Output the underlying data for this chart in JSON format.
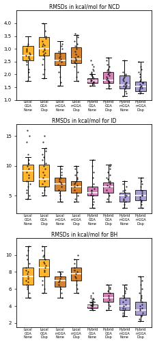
{
  "title_ncd": "RMSDs in kcal/mol for NCD",
  "title_id": "RMSDs in kcal/mol for ID",
  "title_bh": "RMSDs in kcal/mol for BH",
  "labels": [
    "Local\nGGA\nNone",
    "Local\nGGA\nDisp",
    "Local\nmGGA\nNone",
    "Local\nmGGA\nDisp",
    "Hybrid\nGGA\nNone",
    "Hybrid\nGGA\nDisp",
    "Hybrid\nmGGA\nNone",
    "Hybrid\nmGGA\nDisp"
  ],
  "colors": [
    "#FFA500",
    "#FFA500",
    "#CC6600",
    "#CC6600",
    "#CC66AA",
    "#CC66AA",
    "#9988CC",
    "#9988CC"
  ],
  "ncd": {
    "whislo": [
      1.75,
      1.85,
      1.55,
      1.75,
      1.55,
      1.45,
      1.15,
      1.25
    ],
    "q1": [
      2.55,
      2.75,
      2.35,
      2.45,
      1.65,
      1.65,
      1.45,
      1.35
    ],
    "med": [
      2.75,
      3.0,
      2.55,
      2.6,
      1.75,
      1.78,
      1.58,
      1.52
    ],
    "q3": [
      3.1,
      3.45,
      2.85,
      3.05,
      1.85,
      2.1,
      1.95,
      1.72
    ],
    "whishi": [
      3.5,
      4.0,
      3.3,
      3.55,
      2.0,
      2.65,
      2.55,
      2.5
    ],
    "dots": [
      [
        1.75,
        1.9,
        2.1,
        2.2,
        2.4,
        2.5,
        2.55,
        2.6,
        2.65,
        2.7,
        2.75,
        2.8,
        2.85,
        2.9,
        2.95,
        3.0,
        3.1,
        3.2
      ],
      [
        1.85,
        2.0,
        2.2,
        2.4,
        2.6,
        2.75,
        2.8,
        2.85,
        2.9,
        2.95,
        3.0,
        3.1,
        3.15,
        3.2,
        3.3,
        3.4,
        3.5,
        3.7,
        4.0
      ],
      [
        1.55,
        1.7,
        1.9,
        2.1,
        2.3,
        2.4,
        2.5,
        2.55,
        2.6,
        2.65,
        2.7,
        2.8,
        2.9,
        3.0,
        3.1,
        3.2
      ],
      [
        1.75,
        1.9,
        2.1,
        2.3,
        2.45,
        2.5,
        2.55,
        2.6,
        2.65,
        2.7,
        2.8,
        2.9,
        3.0,
        3.1,
        3.2,
        3.3,
        3.45,
        3.55,
        3.6
      ],
      [
        1.55,
        1.6,
        1.65,
        1.7,
        1.72,
        1.75,
        1.78,
        1.8,
        1.85,
        1.9,
        1.95,
        2.0,
        2.05,
        2.1,
        2.15,
        2.2,
        2.3,
        2.4,
        2.55
      ],
      [
        1.45,
        1.55,
        1.65,
        1.7,
        1.72,
        1.75,
        1.78,
        1.8,
        1.85,
        1.9,
        1.95,
        2.0,
        2.05,
        2.1,
        2.15,
        2.2,
        2.3,
        2.4,
        2.55,
        2.65
      ],
      [
        1.15,
        1.25,
        1.35,
        1.45,
        1.5,
        1.52,
        1.55,
        1.58,
        1.6,
        1.65,
        1.7,
        1.75,
        1.8,
        1.85,
        1.9,
        1.95,
        2.0,
        2.1,
        2.55
      ],
      [
        1.25,
        1.35,
        1.4,
        1.45,
        1.48,
        1.5,
        1.52,
        1.55,
        1.6,
        1.65,
        1.7,
        1.75,
        1.8,
        1.9,
        2.0,
        2.1,
        2.2,
        2.3,
        2.5
      ]
    ],
    "ylim": [
      1.0,
      4.5
    ],
    "yticks": [
      1.0,
      1.5,
      2.0,
      2.5,
      3.0,
      3.5,
      4.0
    ]
  },
  "id": {
    "whislo": [
      4.5,
      5.0,
      4.0,
      4.0,
      3.0,
      4.0,
      3.0,
      3.0
    ],
    "q1": [
      7.5,
      6.5,
      5.8,
      5.5,
      5.0,
      5.5,
      4.0,
      4.2
    ],
    "med": [
      9.2,
      7.8,
      7.0,
      6.5,
      5.5,
      6.5,
      5.0,
      5.0
    ],
    "q3": [
      10.2,
      10.2,
      8.0,
      7.5,
      6.5,
      7.2,
      5.5,
      6.0
    ],
    "whishi": [
      11.5,
      13.0,
      10.0,
      10.0,
      11.0,
      10.2,
      7.5,
      8.0
    ],
    "dots": [
      [
        4.5,
        5.0,
        5.5,
        6.0,
        6.5,
        7.0,
        7.5,
        8.0,
        8.5,
        9.0,
        9.5,
        10.0,
        10.5,
        11.0,
        12.0,
        14.0,
        15.0,
        16.0
      ],
      [
        5.0,
        5.5,
        6.0,
        6.5,
        7.0,
        7.5,
        8.0,
        8.5,
        9.0,
        9.5,
        10.0,
        10.5,
        11.0,
        11.5,
        12.0,
        12.5,
        13.0,
        14.0,
        15.0
      ],
      [
        4.0,
        4.5,
        5.0,
        5.5,
        6.0,
        6.5,
        7.0,
        7.2,
        7.5,
        7.8,
        8.0,
        8.5,
        9.0,
        9.5,
        10.0
      ],
      [
        4.0,
        4.5,
        5.0,
        5.5,
        6.0,
        6.5,
        6.8,
        7.0,
        7.2,
        7.5,
        7.8,
        8.0,
        8.5,
        9.0,
        9.5,
        10.0
      ],
      [
        3.0,
        3.5,
        4.0,
        4.5,
        5.0,
        5.2,
        5.5,
        5.8,
        6.0,
        6.2,
        6.5,
        7.0,
        8.0,
        9.0,
        10.0,
        11.0
      ],
      [
        4.0,
        4.5,
        5.0,
        5.5,
        6.0,
        6.5,
        6.8,
        7.0,
        7.2,
        7.5,
        7.8,
        8.0,
        8.5,
        9.0,
        9.5,
        10.0,
        10.2
      ],
      [
        3.0,
        3.5,
        4.0,
        4.2,
        4.5,
        4.8,
        5.0,
        5.2,
        5.5,
        5.8,
        6.0,
        6.5,
        7.0,
        7.5
      ],
      [
        3.0,
        3.5,
        4.0,
        4.2,
        4.5,
        4.8,
        5.0,
        5.2,
        5.5,
        5.8,
        6.0,
        6.5,
        7.0,
        7.5,
        8.0
      ]
    ],
    "ylim": [
      2.0,
      17.0
    ],
    "yticks": [
      5,
      10,
      15
    ]
  },
  "bh": {
    "whislo": [
      5.0,
      5.5,
      5.0,
      5.5,
      3.5,
      3.5,
      2.8,
      2.2
    ],
    "q1": [
      6.5,
      7.5,
      6.3,
      7.0,
      3.8,
      4.5,
      3.5,
      3.0
    ],
    "med": [
      7.5,
      8.5,
      7.0,
      7.8,
      4.0,
      5.0,
      4.0,
      3.5
    ],
    "q3": [
      8.5,
      9.5,
      7.5,
      8.5,
      4.2,
      5.5,
      5.0,
      4.5
    ],
    "whishi": [
      11.0,
      11.0,
      8.0,
      9.5,
      4.5,
      6.5,
      6.5,
      7.5
    ],
    "dots": [
      [
        5.0,
        5.5,
        6.0,
        6.3,
        6.5,
        6.8,
        7.0,
        7.2,
        7.5,
        7.8,
        8.0,
        8.2,
        8.5,
        9.0,
        9.5,
        10.0,
        10.5,
        11.0
      ],
      [
        5.5,
        6.0,
        6.5,
        7.0,
        7.5,
        8.0,
        8.2,
        8.5,
        8.8,
        9.0,
        9.2,
        9.5,
        9.8,
        10.0,
        10.5,
        11.0
      ],
      [
        5.0,
        5.5,
        6.0,
        6.3,
        6.5,
        6.8,
        7.0,
        7.2,
        7.5,
        7.8,
        8.0
      ],
      [
        5.5,
        6.0,
        6.5,
        7.0,
        7.3,
        7.5,
        7.8,
        8.0,
        8.2,
        8.5,
        9.0,
        9.5,
        10.0
      ],
      [
        3.5,
        3.7,
        3.8,
        3.9,
        4.0,
        4.05,
        4.1,
        4.15,
        4.2,
        4.3,
        4.4,
        4.5,
        4.6,
        4.7,
        4.8,
        4.9,
        5.0,
        5.2,
        5.5
      ],
      [
        3.5,
        3.8,
        4.0,
        4.2,
        4.5,
        4.7,
        5.0,
        5.2,
        5.5,
        5.8,
        6.0,
        6.2,
        6.5
      ],
      [
        2.8,
        3.0,
        3.2,
        3.5,
        3.7,
        3.8,
        4.0,
        4.2,
        4.5,
        4.7,
        5.0,
        5.2,
        5.5,
        5.8,
        6.0,
        6.2,
        6.5
      ],
      [
        2.2,
        2.5,
        2.8,
        3.0,
        3.2,
        3.5,
        3.7,
        3.8,
        4.0,
        4.2,
        4.5,
        4.7,
        5.0,
        5.2,
        5.5,
        6.0,
        6.5,
        7.0,
        7.5
      ]
    ],
    "ylim": [
      1.5,
      12.0
    ],
    "yticks": [
      2,
      4,
      6,
      8,
      10
    ]
  }
}
